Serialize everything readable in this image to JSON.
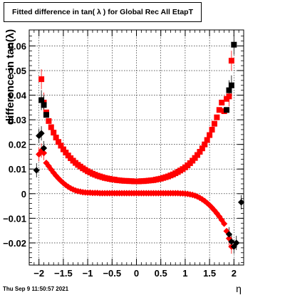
{
  "page": {
    "title": "Fitted difference in tan( λ ) for Global Rec All EtapT",
    "timestamp": "Thu Sep  9 11:50:57 2021"
  },
  "chart_data": {
    "type": "scatter",
    "title": "Fitted difference in tan( λ ) for Global Rec All EtapT",
    "xlabel": "η",
    "ylabel": "difference in tan(λ)",
    "xlim": [
      -2.2,
      2.2
    ],
    "ylim": [
      -0.029,
      0.0665
    ],
    "grid": true,
    "x_ticks": [
      {
        "v": -2,
        "label": "−2"
      },
      {
        "v": -1.5,
        "label": "−1.5"
      },
      {
        "v": -1,
        "label": "−1"
      },
      {
        "v": -0.5,
        "label": "−0.5"
      },
      {
        "v": 0,
        "label": "0"
      },
      {
        "v": 0.5,
        "label": "0.5"
      },
      {
        "v": 1,
        "label": "1"
      },
      {
        "v": 1.5,
        "label": "1.5"
      },
      {
        "v": 2,
        "label": "2"
      }
    ],
    "y_ticks": [
      {
        "v": -0.02,
        "label": "−0.02"
      },
      {
        "v": -0.01,
        "label": "−0.01"
      },
      {
        "v": 0,
        "label": "0"
      },
      {
        "v": 0.01,
        "label": "0.01"
      },
      {
        "v": 0.02,
        "label": "0.02"
      },
      {
        "v": 0.03,
        "label": "0.03"
      },
      {
        "v": 0.04,
        "label": "0.04"
      },
      {
        "v": 0.05,
        "label": "0.05"
      },
      {
        "v": 0.06,
        "label": "0.06"
      }
    ],
    "series": [
      {
        "marker": "square",
        "color": "#ff0000",
        "x": [
          -1.95,
          -1.9,
          -1.85,
          -1.8,
          -1.75,
          -1.7,
          -1.65,
          -1.6,
          -1.55,
          -1.5,
          -1.45,
          -1.4,
          -1.35,
          -1.3,
          -1.25,
          -1.2,
          -1.15,
          -1.1,
          -1.05,
          -1.0,
          -0.95,
          -0.9,
          -0.85,
          -0.8,
          -0.75,
          -0.7,
          -0.65,
          -0.6,
          -0.55,
          -0.5,
          -0.45,
          -0.4,
          -0.35,
          -0.3,
          -0.25,
          -0.2,
          -0.15,
          -0.1,
          -0.05,
          0.0,
          0.05,
          0.1,
          0.15,
          0.2,
          0.25,
          0.3,
          0.35,
          0.4,
          0.45,
          0.5,
          0.55,
          0.6,
          0.65,
          0.7,
          0.75,
          0.8,
          0.85,
          0.9,
          0.95,
          1.0,
          1.05,
          1.1,
          1.15,
          1.2,
          1.25,
          1.3,
          1.35,
          1.4,
          1.45,
          1.5,
          1.55,
          1.6,
          1.65,
          1.7,
          1.75,
          1.8,
          1.85,
          1.9,
          1.95
        ],
        "y": [
          0.0465,
          0.037,
          0.033,
          0.0295,
          0.027,
          0.0248,
          0.0228,
          0.021,
          0.0195,
          0.018,
          0.0167,
          0.0155,
          0.0144,
          0.0134,
          0.0125,
          0.0117,
          0.011,
          0.0103,
          0.0097,
          0.0091,
          0.0086,
          0.0081,
          0.0077,
          0.0073,
          0.007,
          0.0067,
          0.0064,
          0.0062,
          0.006,
          0.0058,
          0.0057,
          0.0055,
          0.0054,
          0.0053,
          0.0052,
          0.0052,
          0.0051,
          0.0051,
          0.005,
          0.005,
          0.005,
          0.0051,
          0.0051,
          0.0052,
          0.0053,
          0.0054,
          0.0055,
          0.0057,
          0.0059,
          0.0061,
          0.0064,
          0.0067,
          0.007,
          0.0074,
          0.0078,
          0.0083,
          0.0088,
          0.0094,
          0.01,
          0.0107,
          0.0115,
          0.0124,
          0.0134,
          0.0145,
          0.0157,
          0.017,
          0.0184,
          0.02,
          0.0218,
          0.0238,
          0.026,
          0.0284,
          0.031,
          0.034,
          0.037,
          0.0335,
          0.0385,
          0.0395,
          0.054
        ]
      },
      {
        "marker": "square",
        "color": "#000000",
        "x": [
          -1.95,
          -1.9,
          -1.85,
          1.85,
          1.9,
          1.95,
          2.0
        ],
        "y": [
          0.038,
          0.036,
          0.032,
          0.034,
          0.042,
          0.044,
          0.0605
        ]
      },
      {
        "marker": "diamond",
        "color": "#ff0000",
        "x": [
          -2.0,
          -1.95,
          -1.9,
          -1.85,
          -1.8,
          -1.75,
          -1.7,
          -1.65,
          -1.6,
          -1.55,
          -1.5,
          -1.45,
          -1.4,
          -1.35,
          -1.3,
          -1.25,
          -1.2,
          -1.15,
          -1.1,
          -1.05,
          -1.0,
          -0.95,
          -0.9,
          -0.85,
          -0.8,
          -0.75,
          -0.7,
          -0.65,
          -0.6,
          -0.55,
          -0.5,
          -0.45,
          -0.4,
          -0.35,
          -0.3,
          -0.25,
          -0.2,
          -0.15,
          -0.1,
          -0.05,
          0.0,
          0.05,
          0.1,
          0.15,
          0.2,
          0.25,
          0.3,
          0.35,
          0.4,
          0.45,
          0.5,
          0.55,
          0.6,
          0.65,
          0.7,
          0.75,
          0.8,
          0.85,
          0.9,
          0.95,
          1.0,
          1.05,
          1.1,
          1.15,
          1.2,
          1.25,
          1.3,
          1.35,
          1.4,
          1.45,
          1.5,
          1.55,
          1.6,
          1.65,
          1.7,
          1.75,
          1.8,
          1.85,
          1.9,
          1.95
        ],
        "y": [
          0.016,
          0.0175,
          0.0165,
          0.0125,
          0.0112,
          0.0098,
          0.0085,
          0.0073,
          0.0062,
          0.0052,
          0.0043,
          0.0035,
          0.0028,
          0.0022,
          0.0017,
          0.0013,
          0.001,
          0.0008,
          0.0006,
          0.0005,
          0.0004,
          0.0004,
          0.0003,
          0.0003,
          0.0003,
          0.0002,
          0.0002,
          0.0002,
          0.0002,
          0.0002,
          0.0002,
          0.0002,
          0.0002,
          0.0002,
          0.0002,
          0.0002,
          0.0002,
          0.0002,
          0.0002,
          0.0002,
          0.0002,
          0.0002,
          0.0002,
          0.0002,
          0.0002,
          0.0002,
          0.0002,
          0.0002,
          0.0002,
          0.0002,
          0.0002,
          0.0002,
          0.0002,
          0.0002,
          0.0002,
          0.0002,
          0.0002,
          0.0002,
          0.0001,
          0.0001,
          0.0,
          -0.0001,
          -0.0003,
          -0.0005,
          -0.0008,
          -0.0012,
          -0.0017,
          -0.0023,
          -0.003,
          -0.0038,
          -0.0047,
          -0.0057,
          -0.0068,
          -0.008,
          -0.0093,
          -0.0107,
          -0.0122,
          -0.0152,
          -0.0182,
          -0.0215
        ]
      },
      {
        "marker": "diamond",
        "color": "#000000",
        "x": [
          -2.05,
          -2.0,
          -1.95,
          -1.9,
          1.9,
          1.95,
          2.0,
          2.05,
          2.15
        ],
        "y": [
          0.0095,
          0.0235,
          0.0245,
          0.0185,
          -0.0165,
          -0.0195,
          -0.0215,
          -0.02,
          -0.0035
        ]
      }
    ]
  }
}
